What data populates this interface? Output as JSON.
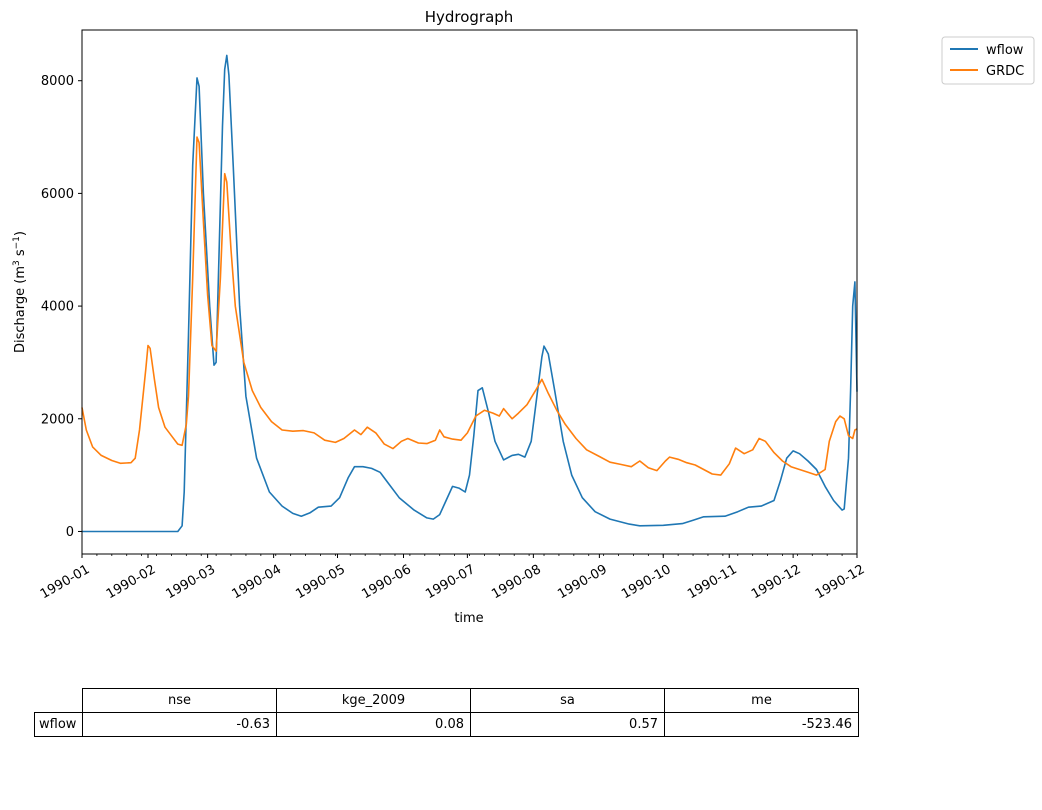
{
  "chart_data": {
    "type": "line",
    "title": "Hydrograph",
    "xlabel": "time",
    "ylabel": "Discharge (m³ s⁻¹)",
    "ylabel_parts": {
      "pre": "Discharge (m",
      "sup1": "3",
      "mid": " s",
      "sup2": "−1",
      "post": ")"
    },
    "x_axis_type": "date",
    "xlim": [
      "1990-01-01",
      "1990-12-31"
    ],
    "ylim": [
      -400,
      8900
    ],
    "x_ticks": [
      "1990-01",
      "1990-02",
      "1990-03",
      "1990-04",
      "1990-05",
      "1990-06",
      "1990-07",
      "1990-08",
      "1990-09",
      "1990-10",
      "1990-11",
      "1990-12",
      "1990-12"
    ],
    "x_tick_dates": [
      "1990-01-01",
      "1990-02-01",
      "1990-03-01",
      "1990-04-01",
      "1990-05-01",
      "1990-06-01",
      "1990-07-01",
      "1990-08-01",
      "1990-09-01",
      "1990-10-01",
      "1990-11-01",
      "1990-12-01",
      "1990-12-31"
    ],
    "y_ticks": [
      0,
      2000,
      4000,
      6000,
      8000
    ],
    "y_tick_labels": [
      "0",
      "2000",
      "4000",
      "6000",
      "8000"
    ],
    "grid": false,
    "legend_position": "outside top-right",
    "series": [
      {
        "name": "wflow",
        "color": "#1f77b4",
        "points": [
          [
            "1990-01-01",
            0
          ],
          [
            "1990-01-15",
            0
          ],
          [
            "1990-02-01",
            0
          ],
          [
            "1990-02-15",
            0
          ],
          [
            "1990-02-17",
            100
          ],
          [
            "1990-02-18",
            700
          ],
          [
            "1990-02-20",
            3500
          ],
          [
            "1990-02-22",
            6500
          ],
          [
            "1990-02-24",
            8050
          ],
          [
            "1990-02-25",
            7900
          ],
          [
            "1990-02-27",
            6000
          ],
          [
            "1990-03-02",
            4000
          ],
          [
            "1990-03-04",
            2950
          ],
          [
            "1990-03-05",
            3000
          ],
          [
            "1990-03-08",
            7200
          ],
          [
            "1990-03-09",
            8200
          ],
          [
            "1990-03-10",
            8450
          ],
          [
            "1990-03-11",
            8100
          ],
          [
            "1990-03-13",
            6500
          ],
          [
            "1990-03-16",
            4000
          ],
          [
            "1990-03-19",
            2400
          ],
          [
            "1990-03-24",
            1300
          ],
          [
            "1990-03-30",
            700
          ],
          [
            "1990-04-05",
            450
          ],
          [
            "1990-04-10",
            320
          ],
          [
            "1990-04-14",
            270
          ],
          [
            "1990-04-18",
            330
          ],
          [
            "1990-04-22",
            430
          ],
          [
            "1990-04-28",
            450
          ],
          [
            "1990-05-02",
            600
          ],
          [
            "1990-05-06",
            950
          ],
          [
            "1990-05-09",
            1150
          ],
          [
            "1990-05-13",
            1150
          ],
          [
            "1990-05-17",
            1120
          ],
          [
            "1990-05-21",
            1050
          ],
          [
            "1990-05-25",
            850
          ],
          [
            "1990-05-30",
            600
          ],
          [
            "1990-06-06",
            380
          ],
          [
            "1990-06-12",
            240
          ],
          [
            "1990-06-15",
            220
          ],
          [
            "1990-06-18",
            300
          ],
          [
            "1990-06-21",
            550
          ],
          [
            "1990-06-24",
            800
          ],
          [
            "1990-06-27",
            770
          ],
          [
            "1990-06-30",
            700
          ],
          [
            "1990-07-02",
            1000
          ],
          [
            "1990-07-04",
            1700
          ],
          [
            "1990-07-06",
            2500
          ],
          [
            "1990-07-08",
            2550
          ],
          [
            "1990-07-11",
            2100
          ],
          [
            "1990-07-14",
            1600
          ],
          [
            "1990-07-18",
            1270
          ],
          [
            "1990-07-22",
            1350
          ],
          [
            "1990-07-25",
            1370
          ],
          [
            "1990-07-28",
            1320
          ],
          [
            "1990-07-31",
            1600
          ],
          [
            "1990-08-03",
            2500
          ],
          [
            "1990-08-05",
            3100
          ],
          [
            "1990-08-06",
            3290
          ],
          [
            "1990-08-08",
            3150
          ],
          [
            "1990-08-11",
            2500
          ],
          [
            "1990-08-15",
            1600
          ],
          [
            "1990-08-19",
            1000
          ],
          [
            "1990-08-24",
            600
          ],
          [
            "1990-08-30",
            350
          ],
          [
            "1990-09-06",
            220
          ],
          [
            "1990-09-15",
            130
          ],
          [
            "1990-09-20",
            100
          ],
          [
            "1990-10-01",
            110
          ],
          [
            "1990-10-10",
            140
          ],
          [
            "1990-10-15",
            200
          ],
          [
            "1990-10-20",
            260
          ],
          [
            "1990-10-30",
            270
          ],
          [
            "1990-11-05",
            350
          ],
          [
            "1990-11-10",
            430
          ],
          [
            "1990-11-16",
            450
          ],
          [
            "1990-11-22",
            550
          ],
          [
            "1990-11-25",
            900
          ],
          [
            "1990-11-28",
            1300
          ],
          [
            "1990-12-01",
            1430
          ],
          [
            "1990-12-04",
            1380
          ],
          [
            "1990-12-08",
            1250
          ],
          [
            "1990-12-12",
            1100
          ],
          [
            "1990-12-16",
            800
          ],
          [
            "1990-12-20",
            550
          ],
          [
            "1990-12-24",
            380
          ],
          [
            "1990-12-25",
            400
          ],
          [
            "1990-12-27",
            1300
          ],
          [
            "1990-12-28",
            2500
          ],
          [
            "1990-12-29",
            4000
          ],
          [
            "1990-12-30",
            4430
          ],
          [
            "1990-12-31",
            2480
          ]
        ]
      },
      {
        "name": "GRDC",
        "color": "#ff7f0e",
        "points": [
          [
            "1990-01-01",
            2200
          ],
          [
            "1990-01-03",
            1800
          ],
          [
            "1990-01-06",
            1500
          ],
          [
            "1990-01-10",
            1350
          ],
          [
            "1990-01-15",
            1260
          ],
          [
            "1990-01-19",
            1210
          ],
          [
            "1990-01-24",
            1220
          ],
          [
            "1990-01-26",
            1300
          ],
          [
            "1990-01-28",
            1800
          ],
          [
            "1990-01-31",
            2900
          ],
          [
            "1990-02-01",
            3300
          ],
          [
            "1990-02-02",
            3250
          ],
          [
            "1990-02-04",
            2700
          ],
          [
            "1990-02-06",
            2200
          ],
          [
            "1990-02-09",
            1850
          ],
          [
            "1990-02-12",
            1700
          ],
          [
            "1990-02-15",
            1550
          ],
          [
            "1990-02-17",
            1530
          ],
          [
            "1990-02-19",
            1900
          ],
          [
            "1990-02-20",
            2400
          ],
          [
            "1990-02-22",
            4500
          ],
          [
            "1990-02-24",
            7000
          ],
          [
            "1990-02-25",
            6900
          ],
          [
            "1990-02-27",
            5500
          ],
          [
            "1990-03-01",
            4200
          ],
          [
            "1990-03-03",
            3300
          ],
          [
            "1990-03-05",
            3200
          ],
          [
            "1990-03-07",
            4500
          ],
          [
            "1990-03-09",
            6350
          ],
          [
            "1990-03-10",
            6200
          ],
          [
            "1990-03-12",
            5000
          ],
          [
            "1990-03-14",
            4000
          ],
          [
            "1990-03-18",
            3000
          ],
          [
            "1990-03-22",
            2500
          ],
          [
            "1990-03-26",
            2200
          ],
          [
            "1990-03-31",
            1950
          ],
          [
            "1990-04-05",
            1800
          ],
          [
            "1990-04-10",
            1780
          ],
          [
            "1990-04-15",
            1790
          ],
          [
            "1990-04-20",
            1750
          ],
          [
            "1990-04-25",
            1620
          ],
          [
            "1990-04-30",
            1580
          ],
          [
            "1990-05-04",
            1650
          ],
          [
            "1990-05-09",
            1800
          ],
          [
            "1990-05-12",
            1720
          ],
          [
            "1990-05-15",
            1850
          ],
          [
            "1990-05-19",
            1750
          ],
          [
            "1990-05-23",
            1550
          ],
          [
            "1990-05-27",
            1470
          ],
          [
            "1990-05-31",
            1600
          ],
          [
            "1990-06-03",
            1650
          ],
          [
            "1990-06-08",
            1570
          ],
          [
            "1990-06-12",
            1560
          ],
          [
            "1990-06-16",
            1620
          ],
          [
            "1990-06-18",
            1800
          ],
          [
            "1990-06-20",
            1680
          ],
          [
            "1990-06-24",
            1640
          ],
          [
            "1990-06-28",
            1620
          ],
          [
            "1990-07-01",
            1750
          ],
          [
            "1990-07-05",
            2050
          ],
          [
            "1990-07-09",
            2150
          ],
          [
            "1990-07-13",
            2100
          ],
          [
            "1990-07-16",
            2050
          ],
          [
            "1990-07-18",
            2180
          ],
          [
            "1990-07-22",
            2000
          ],
          [
            "1990-07-25",
            2100
          ],
          [
            "1990-07-29",
            2250
          ],
          [
            "1990-08-02",
            2500
          ],
          [
            "1990-08-05",
            2700
          ],
          [
            "1990-08-08",
            2450
          ],
          [
            "1990-08-12",
            2150
          ],
          [
            "1990-08-16",
            1900
          ],
          [
            "1990-08-21",
            1650
          ],
          [
            "1990-08-26",
            1450
          ],
          [
            "1990-09-01",
            1330
          ],
          [
            "1990-09-06",
            1230
          ],
          [
            "1990-09-11",
            1190
          ],
          [
            "1990-09-16",
            1150
          ],
          [
            "1990-09-20",
            1250
          ],
          [
            "1990-09-24",
            1130
          ],
          [
            "1990-09-28",
            1080
          ],
          [
            "1990-10-02",
            1250
          ],
          [
            "1990-10-04",
            1320
          ],
          [
            "1990-10-08",
            1280
          ],
          [
            "1990-10-12",
            1220
          ],
          [
            "1990-10-16",
            1180
          ],
          [
            "1990-10-20",
            1100
          ],
          [
            "1990-10-24",
            1020
          ],
          [
            "1990-10-28",
            1000
          ],
          [
            "1990-11-01",
            1200
          ],
          [
            "1990-11-04",
            1480
          ],
          [
            "1990-11-08",
            1380
          ],
          [
            "1990-11-12",
            1450
          ],
          [
            "1990-11-15",
            1650
          ],
          [
            "1990-11-18",
            1600
          ],
          [
            "1990-11-22",
            1400
          ],
          [
            "1990-11-26",
            1250
          ],
          [
            "1990-11-30",
            1150
          ],
          [
            "1990-12-04",
            1100
          ],
          [
            "1990-12-08",
            1050
          ],
          [
            "1990-12-12",
            1000
          ],
          [
            "1990-12-16",
            1100
          ],
          [
            "1990-12-18",
            1600
          ],
          [
            "1990-12-21",
            1950
          ],
          [
            "1990-12-23",
            2050
          ],
          [
            "1990-12-25",
            2000
          ],
          [
            "1990-12-27",
            1700
          ],
          [
            "1990-12-29",
            1650
          ],
          [
            "1990-12-30",
            1800
          ],
          [
            "1990-12-31",
            1820
          ]
        ]
      }
    ]
  },
  "metrics_table": {
    "columns": [
      "nse",
      "kge_2009",
      "sa",
      "me"
    ],
    "rows": [
      {
        "label": "wflow",
        "values": [
          "-0.63",
          "0.08",
          "0.57",
          "-523.46"
        ]
      }
    ]
  }
}
